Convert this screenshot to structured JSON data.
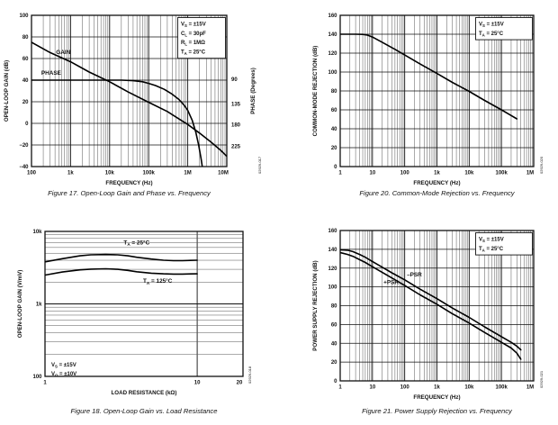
{
  "chart_data": [
    {
      "type": "line",
      "caption": "Figure 17. Open-Loop Gain and Phase vs. Frequency",
      "xlabel": "FREQUENCY (Hz)",
      "ylabel": "OPEN-LOOP GAIN (dB)",
      "ylabel_right": "PHASE (Degrees)",
      "x_scale": "log",
      "x_range": [
        100,
        10000000
      ],
      "x_minor_grid": true,
      "x_ticks": [
        {
          "v": 100,
          "label": "100"
        },
        {
          "v": 1000,
          "label": "1k"
        },
        {
          "v": 10000,
          "label": "10k"
        },
        {
          "v": 100000,
          "label": "100k"
        },
        {
          "v": 1000000,
          "label": "1M"
        },
        {
          "v": 10000000,
          "label": "10M"
        }
      ],
      "y_scale": "linear",
      "y_range": [
        -40,
        100
      ],
      "y_step": 20,
      "y_ticks": [
        {
          "v": 100,
          "label": "100"
        },
        {
          "v": 80,
          "label": "80"
        },
        {
          "v": 60,
          "label": "60"
        },
        {
          "v": 40,
          "label": "40"
        },
        {
          "v": 20,
          "label": "20"
        },
        {
          "v": 0,
          "label": "0"
        },
        {
          "v": -20,
          "label": "−20"
        },
        {
          "v": -40,
          "label": "−40"
        }
      ],
      "y_right_ticks": [
        {
          "label": "90",
          "y": 41
        },
        {
          "label": "135",
          "y": 18
        },
        {
          "label": "180",
          "y": -1
        },
        {
          "label": "225",
          "y": -21
        }
      ],
      "annotation": {
        "position": "top-right",
        "boxed": true,
        "lines": [
          "V_S = ±15V",
          "C_L = 30pF",
          "R_L = 1MΩ",
          "T_A = 25°C"
        ]
      },
      "series": [
        {
          "name": "gain",
          "label": "GAIN",
          "label_at": [
            650,
            64
          ],
          "points": [
            [
              100,
              75
            ],
            [
              300,
              65.5
            ],
            [
              1000,
              57
            ],
            [
              3000,
              47.5
            ],
            [
              10000,
              38.5
            ],
            [
              30000,
              29
            ],
            [
              100000,
              19.5
            ],
            [
              300000,
              11
            ],
            [
              600000,
              4
            ],
            [
              1000000,
              -1
            ],
            [
              2000000,
              -9
            ],
            [
              4000000,
              -17.5
            ],
            [
              7000000,
              -25
            ],
            [
              10000000,
              -30.5
            ]
          ]
        },
        {
          "name": "phase",
          "label": "PHASE",
          "label_at": [
            320,
            45
          ],
          "points": [
            [
              100,
              40
            ],
            [
              10000,
              40
            ],
            [
              20000,
              40
            ],
            [
              40000,
              39.5
            ],
            [
              70000,
              38.5
            ],
            [
              100000,
              37
            ],
            [
              150000,
              35
            ],
            [
              250000,
              31.5
            ],
            [
              400000,
              27
            ],
            [
              600000,
              22
            ],
            [
              800000,
              17
            ],
            [
              1000000,
              12
            ],
            [
              1300000,
              3
            ],
            [
              1600000,
              -8
            ],
            [
              1900000,
              -20
            ],
            [
              2200000,
              -33
            ],
            [
              2400000,
              -42
            ]
          ]
        }
      ],
      "watermark": "02929-017"
    },
    {
      "type": "line",
      "caption": "Figure 20. Common-Mode Rejection vs. Frequency",
      "xlabel": "FREQUENCY (Hz)",
      "ylabel": "COMMON-MODE REJECTION (dB)",
      "ylabel_right": "",
      "x_scale": "log",
      "x_range": [
        1,
        1000000
      ],
      "x_minor_grid": true,
      "x_ticks": [
        {
          "v": 1,
          "label": "1"
        },
        {
          "v": 10,
          "label": "10"
        },
        {
          "v": 100,
          "label": "100"
        },
        {
          "v": 1000,
          "label": "1k"
        },
        {
          "v": 10000,
          "label": "10k"
        },
        {
          "v": 100000,
          "label": "100k"
        },
        {
          "v": 1000000,
          "label": "1M"
        }
      ],
      "y_scale": "linear",
      "y_range": [
        0,
        160
      ],
      "y_step": 20,
      "y_ticks": [
        {
          "v": 160,
          "label": "160"
        },
        {
          "v": 140,
          "label": "140"
        },
        {
          "v": 120,
          "label": "120"
        },
        {
          "v": 100,
          "label": "100"
        },
        {
          "v": 80,
          "label": "80"
        },
        {
          "v": 60,
          "label": "60"
        },
        {
          "v": 40,
          "label": "40"
        },
        {
          "v": 20,
          "label": "20"
        },
        {
          "v": 0,
          "label": "0"
        }
      ],
      "y_right_ticks": [],
      "annotation": {
        "position": "top-right",
        "boxed": true,
        "lines": [
          "V_S = ±15V",
          "T_A = 25°C"
        ]
      },
      "series": [
        {
          "name": "cmr",
          "label": "",
          "label_at": null,
          "points": [
            [
              1,
              140
            ],
            [
              3,
              140
            ],
            [
              5,
              139.8
            ],
            [
              7,
              139
            ],
            [
              10,
              137
            ],
            [
              20,
              131.5
            ],
            [
              50,
              124
            ],
            [
              100,
              118
            ],
            [
              300,
              108.5
            ],
            [
              1000,
              98.5
            ],
            [
              3000,
              89
            ],
            [
              10000,
              79.5
            ],
            [
              30000,
              70
            ],
            [
              100000,
              60
            ],
            [
              300000,
              50.5
            ]
          ]
        }
      ],
      "watermark": "02929-020"
    },
    {
      "type": "line",
      "caption": "Figure 18. Open-Loop Gain vs. Load Resistance",
      "xlabel": "LOAD RESISTANCE (kΩ)",
      "ylabel": "OPEN-LOOP GAIN (V/mV)",
      "ylabel_right": "",
      "x_scale": "log",
      "x_range": [
        1,
        20
      ],
      "x_minor_grid": false,
      "x_ticks": [
        {
          "v": 1,
          "label": "1"
        },
        {
          "v": 10,
          "label": "10"
        },
        {
          "v": 20,
          "label": "20"
        }
      ],
      "y_scale": "log",
      "y_range": [
        100,
        10000
      ],
      "y_ticks": [
        {
          "v": 10000,
          "label": "10k"
        },
        {
          "v": 1000,
          "label": "1k"
        },
        {
          "v": 100,
          "label": "100"
        }
      ],
      "y_right_ticks": [],
      "annotation": {
        "position": "bottom-left",
        "boxed": false,
        "lines": [
          "V_S = ±15V",
          "V_O = ±10V"
        ]
      },
      "series": [
        {
          "name": "gain-25c",
          "label": "T_A = 25°C",
          "label_at": [
            4.0,
            6600
          ],
          "points": [
            [
              1,
              3800
            ],
            [
              1.3,
              4200
            ],
            [
              1.7,
              4600
            ],
            [
              2,
              4750
            ],
            [
              2.5,
              4800
            ],
            [
              3,
              4750
            ],
            [
              3.5,
              4600
            ],
            [
              4,
              4400
            ],
            [
              5,
              4150
            ],
            [
              6,
              4000
            ],
            [
              7,
              3950
            ],
            [
              8,
              3950
            ],
            [
              9,
              3980
            ],
            [
              10,
              4000
            ]
          ]
        },
        {
          "name": "gain-125c",
          "label": "T_A = 125°C",
          "label_at": [
            5.5,
            1950
          ],
          "points": [
            [
              1,
              2500
            ],
            [
              1.3,
              2750
            ],
            [
              1.7,
              2950
            ],
            [
              2,
              3020
            ],
            [
              2.5,
              3050
            ],
            [
              3,
              3000
            ],
            [
              3.5,
              2900
            ],
            [
              4,
              2780
            ],
            [
              5,
              2650
            ],
            [
              6,
              2600
            ],
            [
              7,
              2580
            ],
            [
              8,
              2580
            ],
            [
              9,
              2590
            ],
            [
              10,
              2600
            ]
          ]
        }
      ],
      "watermark": "02929-018"
    },
    {
      "type": "line",
      "caption": "Figure 21. Power Supply Rejection vs. Frequency",
      "xlabel": "FREQUENCY (Hz)",
      "ylabel": "POWER SUPPLY REJECTION (dB)",
      "ylabel_right": "",
      "x_scale": "log",
      "x_range": [
        1,
        1000000
      ],
      "x_minor_grid": true,
      "x_ticks": [
        {
          "v": 1,
          "label": "1"
        },
        {
          "v": 10,
          "label": "10"
        },
        {
          "v": 100,
          "label": "100"
        },
        {
          "v": 1000,
          "label": "1k"
        },
        {
          "v": 10000,
          "label": "10k"
        },
        {
          "v": 100000,
          "label": "100k"
        },
        {
          "v": 1000000,
          "label": "1M"
        }
      ],
      "y_scale": "linear",
      "y_range": [
        0,
        160
      ],
      "y_step": 20,
      "y_ticks": [
        {
          "v": 160,
          "label": "160"
        },
        {
          "v": 140,
          "label": "140"
        },
        {
          "v": 120,
          "label": "120"
        },
        {
          "v": 100,
          "label": "100"
        },
        {
          "v": 80,
          "label": "80"
        },
        {
          "v": 60,
          "label": "60"
        },
        {
          "v": 40,
          "label": "40"
        },
        {
          "v": 20,
          "label": "20"
        },
        {
          "v": 0,
          "label": "0"
        }
      ],
      "y_right_ticks": [],
      "annotation": {
        "position": "top-right",
        "boxed": true,
        "lines": [
          "V_S = ±15V",
          "T_A = 25°C"
        ]
      },
      "series": [
        {
          "name": "psr-neg",
          "label": "–PSR",
          "label_at": [
            200,
            111
          ],
          "points": [
            [
              1,
              139.5
            ],
            [
              1.7,
              139
            ],
            [
              2.5,
              137.5
            ],
            [
              4,
              134.5
            ],
            [
              6,
              131.5
            ],
            [
              10,
              127
            ],
            [
              20,
              121
            ],
            [
              40,
              115
            ],
            [
              100,
              107.5
            ],
            [
              300,
              97.5
            ],
            [
              1000,
              87.5
            ],
            [
              3000,
              77.5
            ],
            [
              10000,
              67.5
            ],
            [
              30000,
              57.5
            ],
            [
              100000,
              47
            ],
            [
              200000,
              41
            ],
            [
              300000,
              37
            ],
            [
              400000,
              33
            ]
          ]
        },
        {
          "name": "psr-pos",
          "label": "+PSR",
          "label_at": [
            38,
            103
          ],
          "points": [
            [
              1,
              136.5
            ],
            [
              1.7,
              134.5
            ],
            [
              2.5,
              132.5
            ],
            [
              4,
              129
            ],
            [
              6,
              126
            ],
            [
              10,
              121.5
            ],
            [
              20,
              115.5
            ],
            [
              40,
              109.5
            ],
            [
              100,
              101.5
            ],
            [
              300,
              91.5
            ],
            [
              1000,
              81.5
            ],
            [
              3000,
              71.5
            ],
            [
              10000,
              61.5
            ],
            [
              30000,
              51.5
            ],
            [
              100000,
              41
            ],
            [
              200000,
              35
            ],
            [
              300000,
              29.5
            ],
            [
              400000,
              23
            ]
          ]
        }
      ],
      "watermark": "02929-021"
    }
  ]
}
